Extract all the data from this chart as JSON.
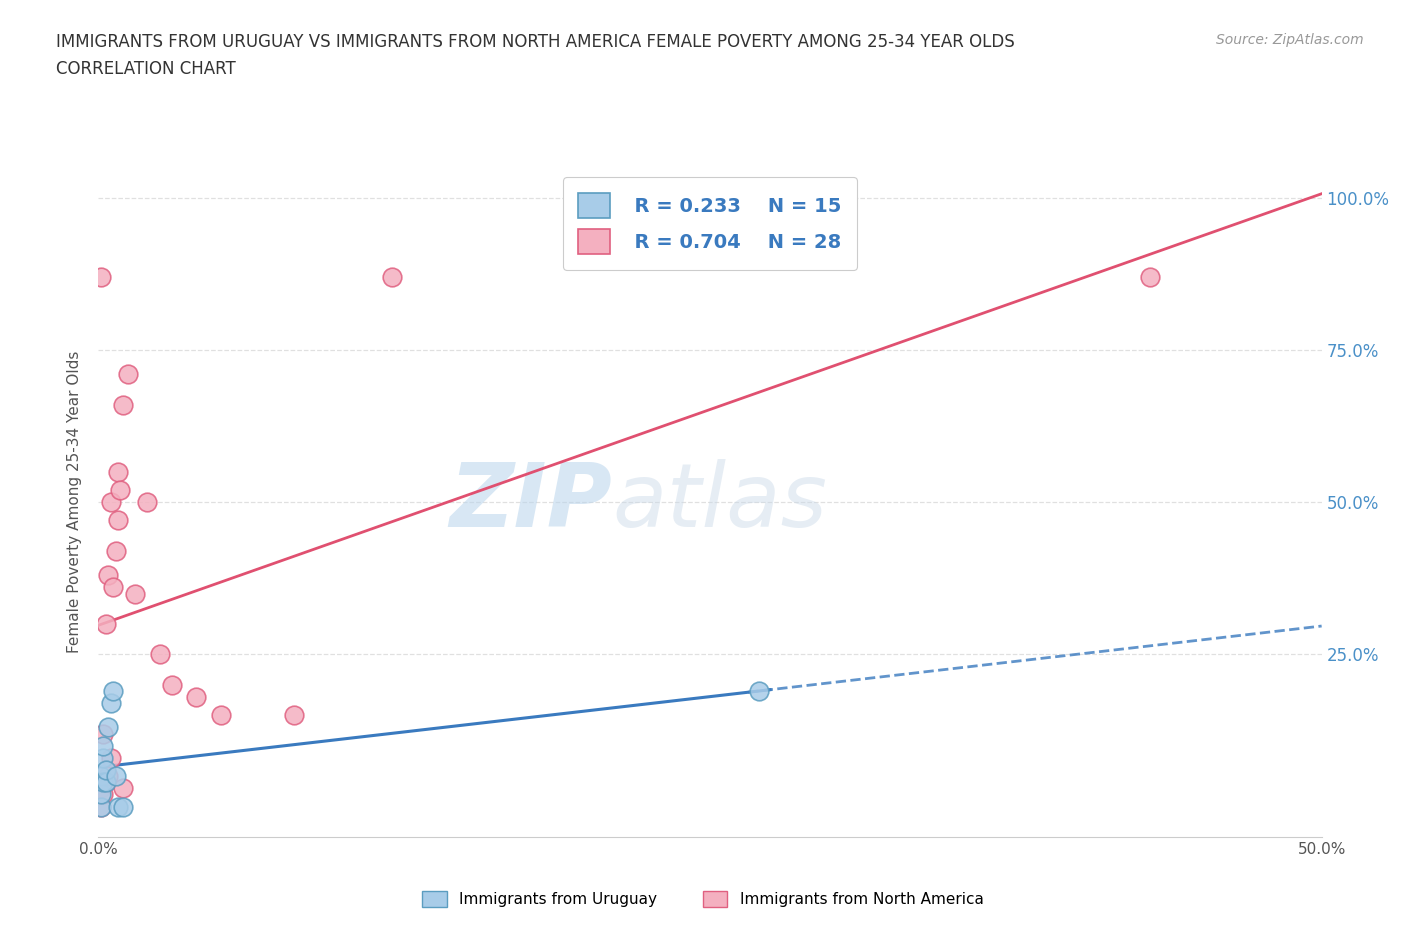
{
  "title_line1": "IMMIGRANTS FROM URUGUAY VS IMMIGRANTS FROM NORTH AMERICA FEMALE POVERTY AMONG 25-34 YEAR OLDS",
  "title_line2": "CORRELATION CHART",
  "source_text": "Source: ZipAtlas.com",
  "ylabel": "Female Poverty Among 25-34 Year Olds",
  "xlim": [
    0.0,
    0.5
  ],
  "ylim": [
    -0.05,
    1.05
  ],
  "xtick_vals": [
    0.0,
    0.1,
    0.2,
    0.3,
    0.4,
    0.5
  ],
  "xtick_labels": [
    "0.0%",
    "",
    "",
    "",
    "",
    "50.0%"
  ],
  "ytick_vals": [
    0.0,
    0.25,
    0.5,
    0.75,
    1.0
  ],
  "ytick_labels_right": [
    "",
    "25.0%",
    "50.0%",
    "75.0%",
    "100.0%"
  ],
  "watermark_zip": "ZIP",
  "watermark_atlas": "atlas",
  "uruguay_color": "#a8cce8",
  "uruguay_edge": "#5b9dc0",
  "north_america_color": "#f4b0c0",
  "north_america_edge": "#e06080",
  "legend_r1": "R = 0.233",
  "legend_n1": "N = 15",
  "legend_r2": "R = 0.704",
  "legend_n2": "N = 28",
  "uruguay_label": "Immigrants from Uruguay",
  "north_america_label": "Immigrants from North America",
  "line_uruguay_color": "#3a7abf",
  "line_north_america_color": "#e05070",
  "uruguay_x": [
    0.001,
    0.001,
    0.001,
    0.002,
    0.002,
    0.002,
    0.003,
    0.003,
    0.004,
    0.005,
    0.006,
    0.007,
    0.008,
    0.01,
    0.27
  ],
  "uruguay_y": [
    0.0,
    0.02,
    0.05,
    0.04,
    0.08,
    0.1,
    0.04,
    0.06,
    0.13,
    0.17,
    0.19,
    0.05,
    0.0,
    0.0,
    0.19
  ],
  "north_america_x": [
    0.001,
    0.001,
    0.001,
    0.002,
    0.002,
    0.003,
    0.003,
    0.004,
    0.004,
    0.005,
    0.005,
    0.006,
    0.007,
    0.008,
    0.008,
    0.009,
    0.01,
    0.01,
    0.012,
    0.015,
    0.02,
    0.025,
    0.03,
    0.04,
    0.05,
    0.08,
    0.12,
    0.43
  ],
  "north_america_y": [
    0.0,
    0.03,
    0.87,
    0.02,
    0.12,
    0.04,
    0.3,
    0.05,
    0.38,
    0.08,
    0.5,
    0.36,
    0.42,
    0.47,
    0.55,
    0.52,
    0.03,
    0.66,
    0.71,
    0.35,
    0.5,
    0.25,
    0.2,
    0.18,
    0.15,
    0.15,
    0.87,
    0.87
  ],
  "background_color": "#ffffff",
  "grid_color": "#e0e0e0",
  "grid_style": "dotted"
}
